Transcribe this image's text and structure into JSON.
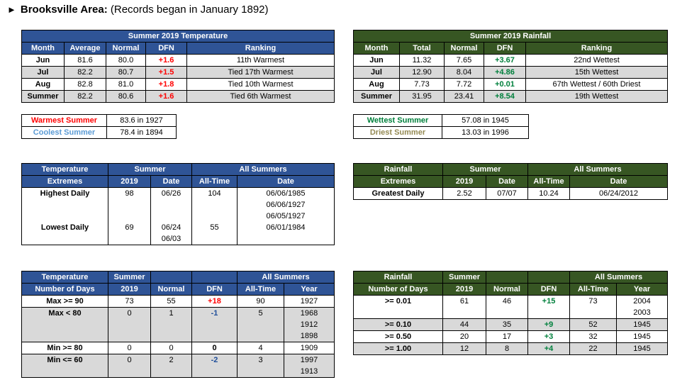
{
  "header": {
    "arrow": "►",
    "title": "Brooksville Area:",
    "subtitle": "(Records began in January 1892)"
  },
  "temp_summary": {
    "title": "Summer 2019 Temperature",
    "columns": [
      "Month",
      "Average",
      "Normal",
      "DFN",
      "Ranking"
    ],
    "rows": [
      {
        "month": "Jun",
        "average": "81.6",
        "normal": "80.0",
        "dfn": "+1.6",
        "ranking": "11th Warmest"
      },
      {
        "month": "Jul",
        "average": "82.2",
        "normal": "80.7",
        "dfn": "+1.5",
        "ranking": "Tied 17th Warmest"
      },
      {
        "month": "Aug",
        "average": "82.8",
        "normal": "81.0",
        "dfn": "+1.8",
        "ranking": "Tied 10th Warmest"
      },
      {
        "month": "Summer",
        "average": "82.2",
        "normal": "80.6",
        "dfn": "+1.6",
        "ranking": "Tied 6th Warmest"
      }
    ]
  },
  "rain_summary": {
    "title": "Summer 2019 Rainfall",
    "columns": [
      "Month",
      "Total",
      "Normal",
      "DFN",
      "Ranking"
    ],
    "rows": [
      {
        "month": "Jun",
        "total": "11.32",
        "normal": "7.65",
        "dfn": "+3.67",
        "ranking": "22nd Wettest"
      },
      {
        "month": "Jul",
        "total": "12.90",
        "normal": "8.04",
        "dfn": "+4.86",
        "ranking": "15th Wettest"
      },
      {
        "month": "Aug",
        "total": "7.73",
        "normal": "7.72",
        "dfn": "+0.01",
        "ranking": "67th Wettest / 60th Driest"
      },
      {
        "month": "Summer",
        "total": "31.95",
        "normal": "23.41",
        "dfn": "+8.54",
        "ranking": "19th Wettest"
      }
    ]
  },
  "temp_records": {
    "warmest_label": "Warmest Summer",
    "warmest_value": "83.6 in 1927",
    "coolest_label": "Coolest Summer",
    "coolest_value": "78.4 in 1894"
  },
  "rain_records": {
    "wettest_label": "Wettest Summer",
    "wettest_value": "57.08 in 1945",
    "driest_label": "Driest Summer",
    "driest_value": "13.03 in 1996"
  },
  "temp_extremes": {
    "h_label1": "Temperature",
    "h_label2": "Extremes",
    "h_summer": "Summer",
    "h_all": "All Summers",
    "h_2019": "2019",
    "h_date": "Date",
    "h_alltime": "All-Time",
    "h_date2": "Date",
    "highest_label": "Highest Daily",
    "highest_value": "98",
    "highest_date": "06/26",
    "highest_alltime": "104",
    "highest_dates": [
      "06/06/1985",
      "06/06/1927",
      "06/05/1927"
    ],
    "lowest_label": "Lowest Daily",
    "lowest_value": "69",
    "lowest_dates_2019": [
      "06/24",
      "06/03"
    ],
    "lowest_alltime": "55",
    "lowest_date": "06/01/1984"
  },
  "rain_extremes": {
    "h_label1": "Rainfall",
    "h_label2": "Extremes",
    "h_summer": "Summer",
    "h_all": "All Summers",
    "h_2019": "2019",
    "h_date": "Date",
    "h_alltime": "All-Time",
    "h_date2": "Date",
    "label": "Greatest Daily",
    "value": "2.52",
    "date": "07/07",
    "alltime": "10.24",
    "alltime_date": "06/24/2012"
  },
  "temp_days": {
    "h_label1": "Temperature",
    "h_label2": "Number of Days",
    "h_summer1": "Summer",
    "h_summer2": "2019",
    "h_normal": "Normal",
    "h_dfn": "DFN",
    "h_all": "All Summers",
    "h_alltime": "All-Time",
    "h_year": "Year",
    "max90": {
      "label": "Max >= 90",
      "summer": "73",
      "normal": "55",
      "dfn": "+18",
      "alltime": "90",
      "year": "1927"
    },
    "max80": {
      "label": "Max < 80",
      "summer": "0",
      "normal": "1",
      "dfn": "-1",
      "alltime": "5",
      "years": [
        "1968",
        "1912",
        "1898"
      ]
    },
    "min80": {
      "label": "Min >= 80",
      "summer": "0",
      "normal": "0",
      "dfn": "0",
      "alltime": "4",
      "year": "1909"
    },
    "min60": {
      "label": "Min <= 60",
      "summer": "0",
      "normal": "2",
      "dfn": "-2",
      "alltime": "3",
      "years": [
        "1997",
        "1913"
      ]
    }
  },
  "rain_days": {
    "h_label1": "Rainfall",
    "h_label2": "Number of Days",
    "h_summer1": "Summer",
    "h_summer2": "2019",
    "h_normal": "Normal",
    "h_dfn": "DFN",
    "h_all": "All Summers",
    "h_alltime": "All-Time",
    "h_year": "Year",
    "r001": {
      "label": ">= 0.01",
      "summer": "61",
      "normal": "46",
      "dfn": "+15",
      "alltime": "73",
      "years": [
        "2004",
        "2003"
      ]
    },
    "r010": {
      "label": ">= 0.10",
      "summer": "44",
      "normal": "35",
      "dfn": "+9",
      "alltime": "52",
      "year": "1945"
    },
    "r050": {
      "label": ">= 0.50",
      "summer": "20",
      "normal": "17",
      "dfn": "+3",
      "alltime": "32",
      "year": "1945"
    },
    "r100": {
      "label": ">= 1.00",
      "summer": "12",
      "normal": "8",
      "dfn": "+4",
      "alltime": "22",
      "year": "1945"
    }
  },
  "colors": {
    "temp_header": "#2f5496",
    "rain_header": "#375623",
    "row_shade": "#d9d9d9",
    "positive_temp": "#ff0000",
    "positive_rain": "#00803c",
    "negative": "#1f4e9a"
  }
}
